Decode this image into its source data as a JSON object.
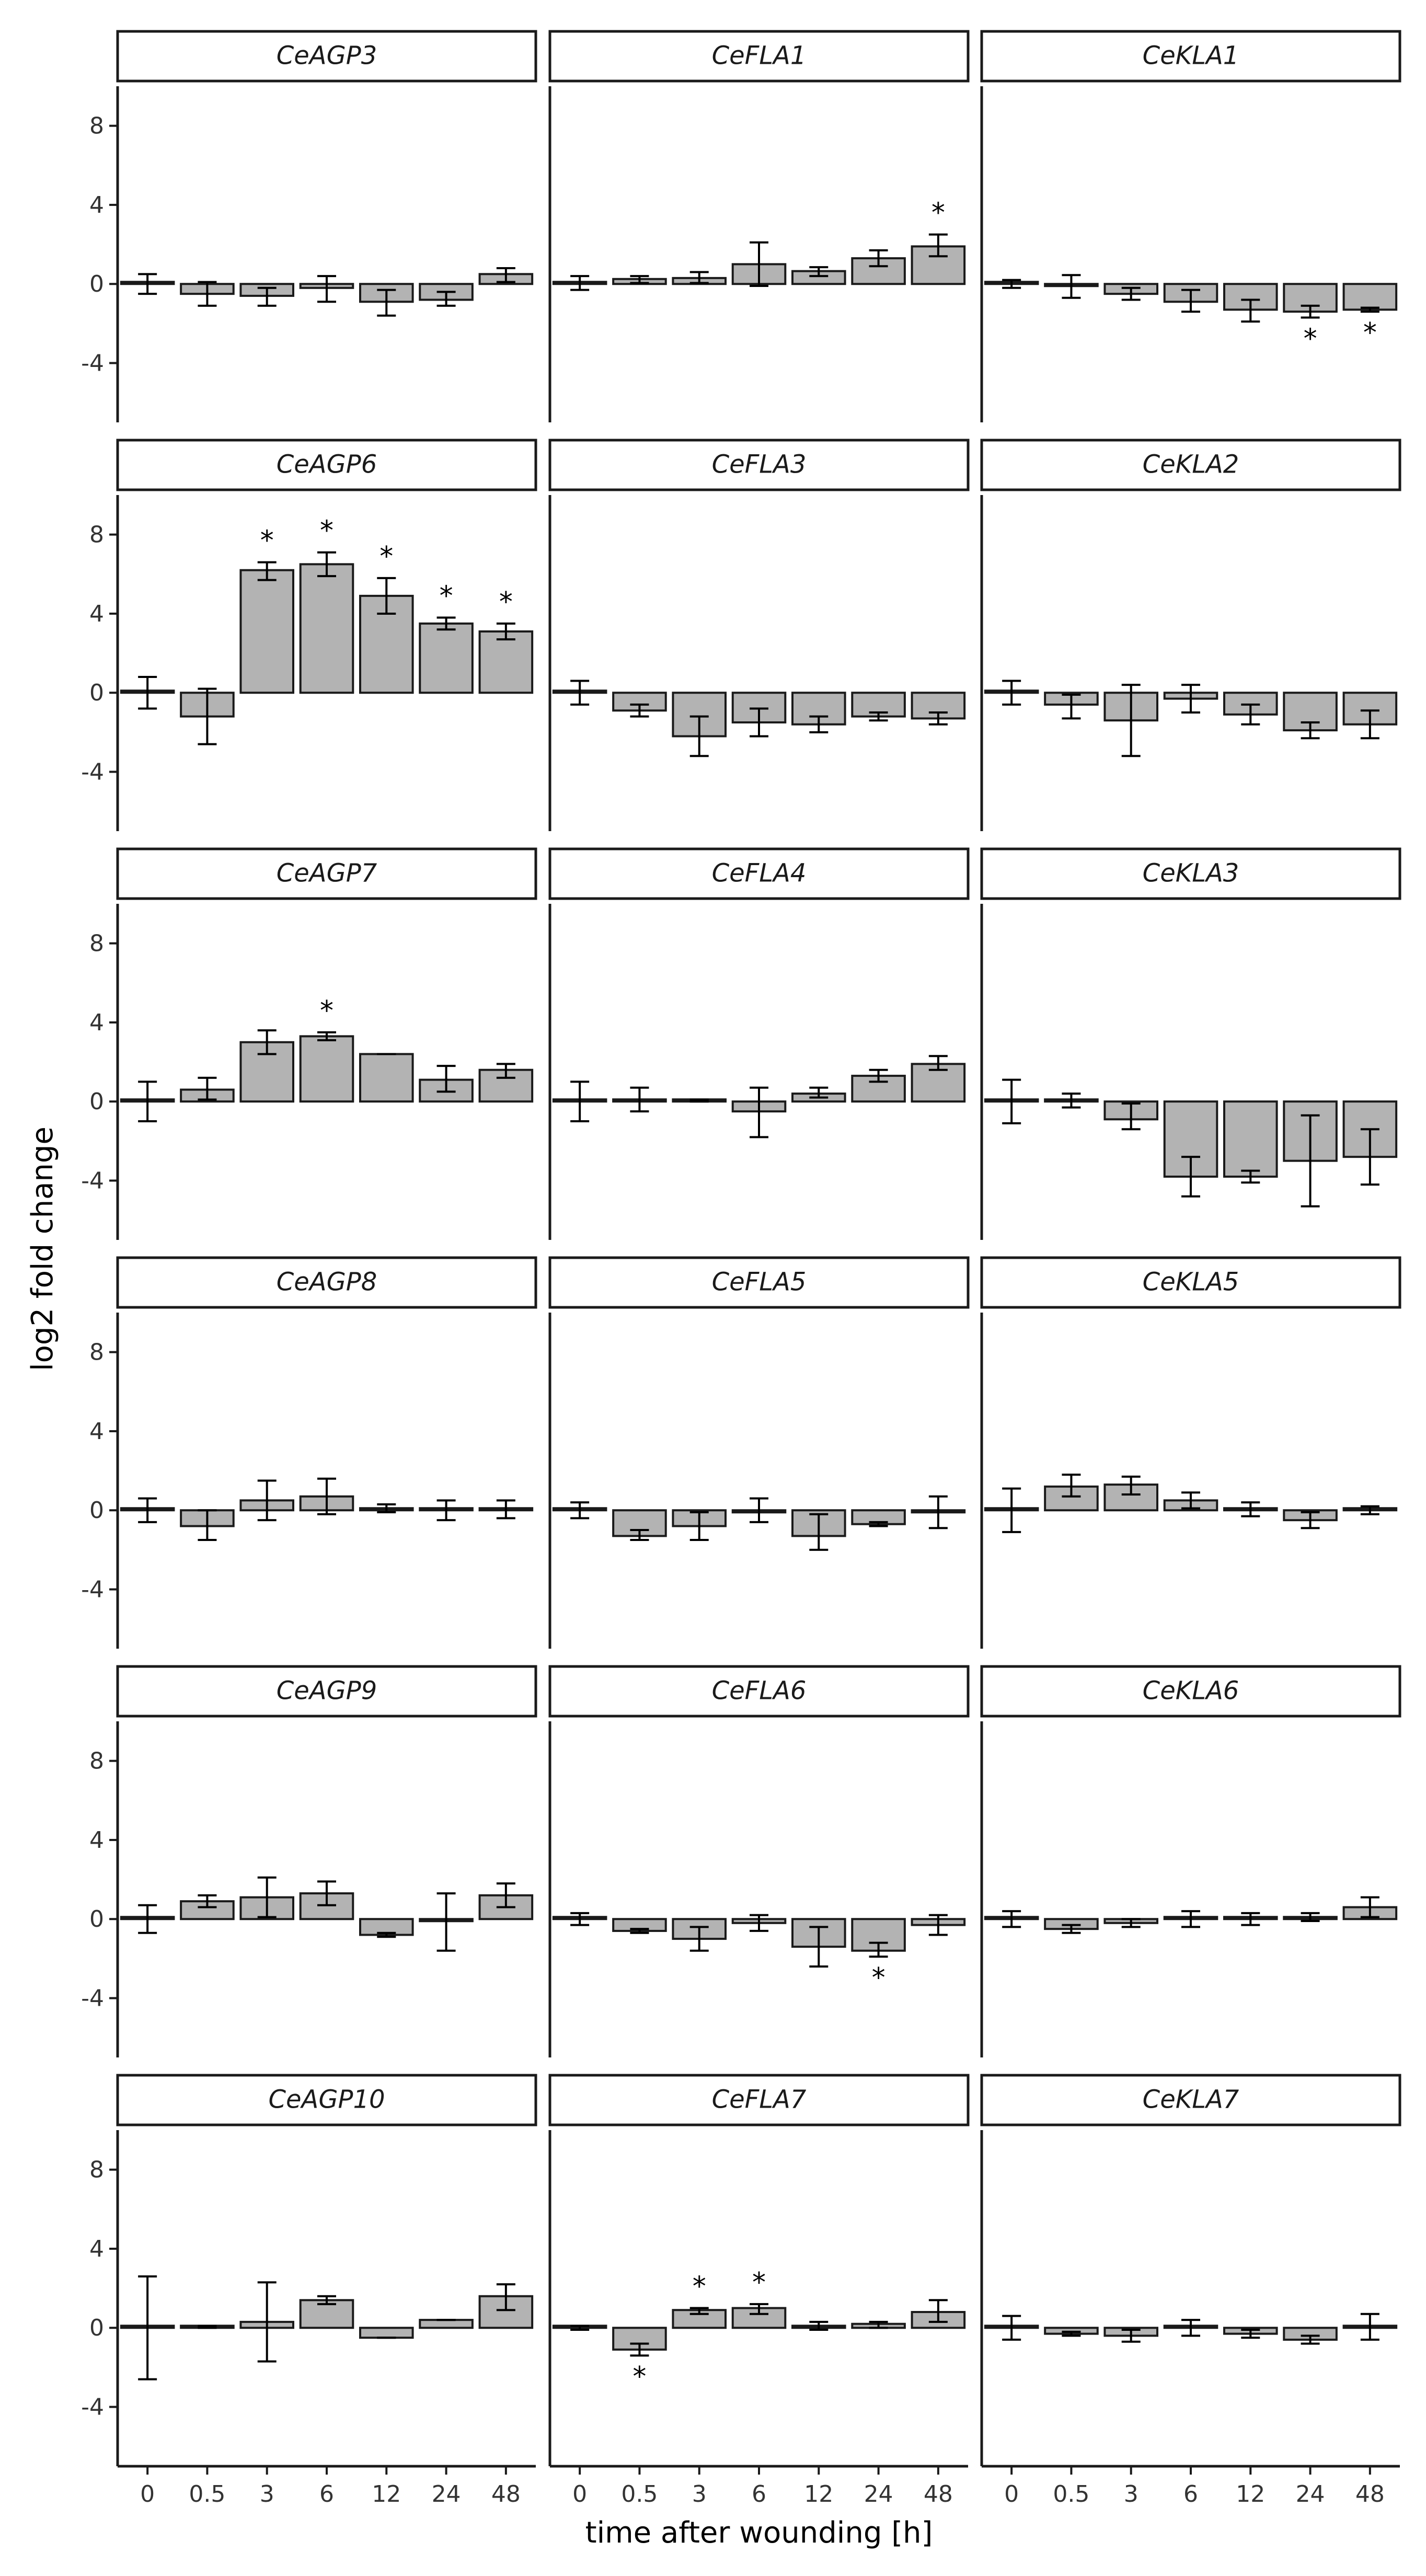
{
  "chart_data": {
    "type": "bar",
    "xlabel": "time after wounding [h]",
    "ylabel": "log2 fold change",
    "categories": [
      "0",
      "0.5",
      "3",
      "6",
      "12",
      "24",
      "48"
    ],
    "ylim": [
      -7,
      10
    ],
    "yticks": [
      -4,
      0,
      4,
      8
    ],
    "yticklabels": [
      "-4",
      "0",
      "4",
      "8"
    ],
    "significance_marker": "*",
    "bar_color": "#b3b3b3",
    "bar_outline": "#1a1a1a",
    "facets": [
      {
        "name": "CeAGP3",
        "values": [
          0,
          -0.5,
          -0.6,
          -0.2,
          -0.9,
          -0.8,
          0.5
        ],
        "err_low": [
          -0.5,
          -1.1,
          -1.1,
          -0.9,
          -1.6,
          -1.1,
          0.1
        ],
        "err_high": [
          0.5,
          0.1,
          -0.2,
          0.4,
          -0.3,
          -0.4,
          0.8
        ],
        "sig": [
          false,
          false,
          false,
          false,
          false,
          false,
          false
        ]
      },
      {
        "name": "CeFLA1",
        "values": [
          0,
          0.25,
          0.3,
          1.0,
          0.65,
          1.3,
          1.9
        ],
        "err_low": [
          -0.3,
          0.05,
          0.05,
          -0.1,
          0.4,
          0.9,
          1.4
        ],
        "err_high": [
          0.4,
          0.4,
          0.6,
          2.1,
          0.85,
          1.7,
          2.5
        ],
        "sig": [
          false,
          false,
          false,
          false,
          false,
          false,
          true
        ]
      },
      {
        "name": "CeKLA1",
        "values": [
          0,
          -0.1,
          -0.5,
          -0.9,
          -1.3,
          -1.4,
          -1.3
        ],
        "err_low": [
          -0.2,
          -0.7,
          -0.8,
          -1.4,
          -1.9,
          -1.7,
          -1.4
        ],
        "err_high": [
          0.2,
          0.45,
          -0.2,
          -0.3,
          -0.8,
          -1.1,
          -1.2
        ],
        "sig": [
          false,
          false,
          false,
          false,
          false,
          true,
          true
        ]
      },
      {
        "name": "CeAGP6",
        "values": [
          0,
          -1.2,
          6.2,
          6.5,
          4.9,
          3.5,
          3.1
        ],
        "err_low": [
          -0.8,
          -2.6,
          5.7,
          5.9,
          4.0,
          3.2,
          2.7
        ],
        "err_high": [
          0.8,
          0.2,
          6.6,
          7.1,
          5.8,
          3.8,
          3.5
        ],
        "sig": [
          false,
          false,
          true,
          true,
          true,
          true,
          true
        ]
      },
      {
        "name": "CeFLA3",
        "values": [
          0,
          -0.9,
          -2.2,
          -1.5,
          -1.6,
          -1.2,
          -1.3
        ],
        "err_low": [
          -0.6,
          -1.2,
          -3.2,
          -2.2,
          -2.0,
          -1.4,
          -1.6
        ],
        "err_high": [
          0.6,
          -0.6,
          -1.2,
          -0.8,
          -1.2,
          -1.0,
          -1.0
        ],
        "sig": [
          false,
          false,
          false,
          false,
          false,
          false,
          false
        ]
      },
      {
        "name": "CeKLA2",
        "values": [
          0,
          -0.6,
          -1.4,
          -0.3,
          -1.1,
          -1.9,
          -1.6
        ],
        "err_low": [
          -0.6,
          -1.3,
          -3.2,
          -1.0,
          -1.6,
          -2.3,
          -2.3
        ],
        "err_high": [
          0.6,
          -0.1,
          0.4,
          0.4,
          -0.6,
          -1.5,
          -0.9
        ],
        "sig": [
          false,
          false,
          false,
          false,
          false,
          false,
          false
        ]
      },
      {
        "name": "CeAGP7",
        "values": [
          0,
          0.6,
          3.0,
          3.3,
          2.4,
          1.1,
          1.6
        ],
        "err_low": [
          -1.0,
          0.1,
          2.4,
          3.1,
          2.4,
          0.5,
          1.2
        ],
        "err_high": [
          1.0,
          1.2,
          3.6,
          3.5,
          2.4,
          1.8,
          1.9
        ],
        "sig": [
          false,
          false,
          false,
          true,
          false,
          false,
          false
        ]
      },
      {
        "name": "CeFLA4",
        "values": [
          0,
          0.05,
          0.05,
          -0.5,
          0.4,
          1.3,
          1.9
        ],
        "err_low": [
          -1.0,
          -0.5,
          0.0,
          -1.8,
          0.2,
          1.0,
          1.6
        ],
        "err_high": [
          1.0,
          0.7,
          0.1,
          0.7,
          0.7,
          1.6,
          2.3
        ],
        "sig": [
          false,
          false,
          false,
          false,
          false,
          false,
          false
        ]
      },
      {
        "name": "CeKLA3",
        "values": [
          0,
          0.0,
          -0.9,
          -3.8,
          -3.8,
          -3.0,
          -2.8
        ],
        "err_low": [
          -1.1,
          -0.3,
          -1.4,
          -4.8,
          -4.1,
          -5.3,
          -4.2
        ],
        "err_high": [
          1.1,
          0.4,
          -0.1,
          -2.8,
          -3.5,
          -0.7,
          -1.4
        ],
        "sig": [
          false,
          false,
          false,
          false,
          false,
          false,
          false
        ]
      },
      {
        "name": "CeAGP8",
        "values": [
          0,
          -0.8,
          0.5,
          0.7,
          0.1,
          0.0,
          0.0
        ],
        "err_low": [
          -0.6,
          -1.5,
          -0.5,
          -0.2,
          -0.1,
          -0.5,
          -0.4
        ],
        "err_high": [
          0.6,
          0.0,
          1.5,
          1.6,
          0.3,
          0.5,
          0.5
        ],
        "sig": [
          false,
          false,
          false,
          false,
          false,
          false,
          false
        ]
      },
      {
        "name": "CeFLA5",
        "values": [
          0,
          -1.3,
          -0.8,
          -0.1,
          -1.3,
          -0.7,
          -0.1
        ],
        "err_low": [
          -0.4,
          -1.5,
          -1.5,
          -0.6,
          -2.0,
          -0.8,
          -0.9
        ],
        "err_high": [
          0.4,
          -1.0,
          -0.1,
          0.6,
          -0.2,
          -0.6,
          0.7
        ],
        "sig": [
          false,
          false,
          false,
          false,
          false,
          false,
          false
        ]
      },
      {
        "name": "CeKLA5",
        "values": [
          0,
          1.2,
          1.3,
          0.5,
          0.0,
          -0.5,
          0.0
        ],
        "err_low": [
          -1.1,
          0.7,
          0.8,
          0.1,
          -0.3,
          -0.9,
          -0.2
        ],
        "err_high": [
          1.1,
          1.8,
          1.7,
          0.9,
          0.4,
          -0.1,
          0.2
        ],
        "sig": [
          false,
          false,
          false,
          false,
          false,
          false,
          false
        ]
      },
      {
        "name": "CeAGP9",
        "values": [
          0,
          0.9,
          1.1,
          1.3,
          -0.8,
          -0.1,
          1.2
        ],
        "err_low": [
          -0.7,
          0.6,
          0.1,
          0.7,
          -0.9,
          -1.6,
          0.6
        ],
        "err_high": [
          0.7,
          1.2,
          2.1,
          1.9,
          -0.7,
          1.3,
          1.8
        ],
        "sig": [
          false,
          false,
          false,
          false,
          false,
          false,
          false
        ]
      },
      {
        "name": "CeFLA6",
        "values": [
          0,
          -0.6,
          -1.0,
          -0.2,
          -1.4,
          -1.6,
          -0.3
        ],
        "err_low": [
          -0.3,
          -0.7,
          -1.6,
          -0.6,
          -2.4,
          -1.9,
          -0.8
        ],
        "err_high": [
          0.3,
          -0.5,
          -0.4,
          0.2,
          -0.4,
          -1.2,
          0.2
        ],
        "sig": [
          false,
          false,
          false,
          false,
          false,
          true,
          false
        ]
      },
      {
        "name": "CeKLA6",
        "values": [
          0,
          -0.5,
          -0.2,
          0.0,
          0.0,
          0.1,
          0.6
        ],
        "err_low": [
          -0.4,
          -0.7,
          -0.4,
          -0.4,
          -0.3,
          -0.1,
          0.1
        ],
        "err_high": [
          0.4,
          -0.3,
          0.0,
          0.4,
          0.3,
          0.3,
          1.1
        ],
        "sig": [
          false,
          false,
          false,
          false,
          false,
          false,
          false
        ]
      },
      {
        "name": "CeAGP10",
        "values": [
          0,
          0.05,
          0.3,
          1.4,
          -0.5,
          0.4,
          1.6
        ],
        "err_low": [
          -2.6,
          0.0,
          -1.7,
          1.2,
          -0.5,
          0.4,
          0.9
        ],
        "err_high": [
          2.6,
          0.1,
          2.3,
          1.6,
          -0.5,
          0.4,
          2.2
        ],
        "sig": [
          false,
          false,
          false,
          false,
          false,
          false,
          false
        ]
      },
      {
        "name": "CeFLA7",
        "values": [
          0,
          -1.1,
          0.9,
          1.0,
          0.1,
          0.2,
          0.8
        ],
        "err_low": [
          -0.1,
          -1.4,
          0.7,
          0.7,
          -0.1,
          0.0,
          0.3
        ],
        "err_high": [
          0.1,
          -0.8,
          1.0,
          1.2,
          0.3,
          0.3,
          1.4
        ],
        "sig": [
          false,
          true,
          true,
          true,
          false,
          false,
          false
        ]
      },
      {
        "name": "CeKLA7",
        "values": [
          0,
          -0.3,
          -0.4,
          0.0,
          -0.3,
          -0.6,
          0.0
        ],
        "err_low": [
          -0.6,
          -0.4,
          -0.7,
          -0.4,
          -0.5,
          -0.8,
          -0.6
        ],
        "err_high": [
          0.6,
          -0.2,
          -0.1,
          0.4,
          -0.1,
          -0.4,
          0.7
        ],
        "sig": [
          false,
          false,
          false,
          false,
          false,
          false,
          false
        ]
      }
    ]
  }
}
